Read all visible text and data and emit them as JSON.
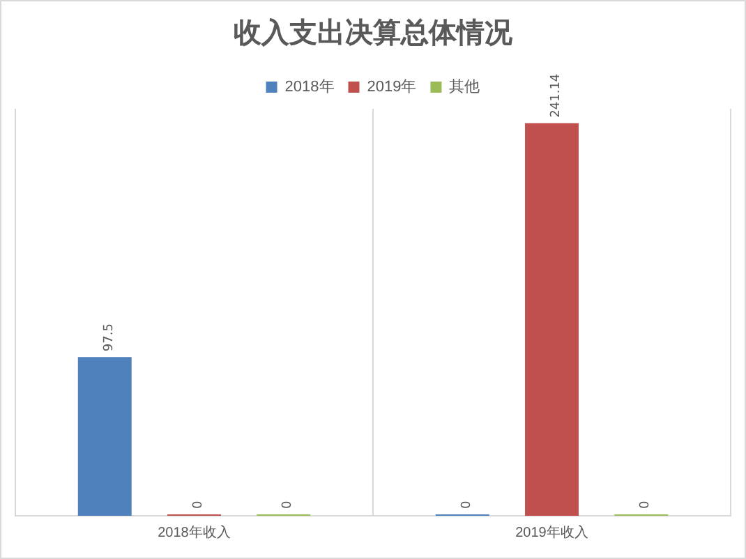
{
  "chart_data": {
    "type": "bar",
    "title": "收入支出决算总体情况",
    "categories": [
      "2018年收入",
      "2019年收入"
    ],
    "series": [
      {
        "name": "2018年",
        "color": "#4f81bd",
        "values": [
          97.5,
          0
        ]
      },
      {
        "name": "2019年",
        "color": "#c0504d",
        "values": [
          0,
          241.14
        ]
      },
      {
        "name": "其他",
        "color": "#9bbb59",
        "values": [
          0,
          0
        ]
      }
    ],
    "data_labels": true,
    "grid": "x",
    "legend": "top"
  }
}
